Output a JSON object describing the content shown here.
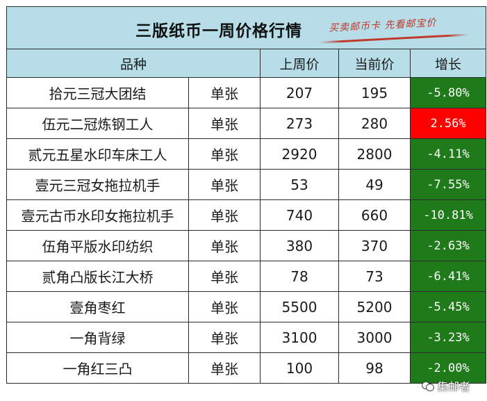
{
  "title": "三版纸币一周价格行情",
  "slogan": "买卖邮币卡  先看邮宝价",
  "headers": {
    "variety": "品种",
    "last_week": "上周价",
    "current": "当前价",
    "growth": "增长"
  },
  "rows": [
    {
      "name": "拾元三冠大团结",
      "unit": "单张",
      "last": "207",
      "current": "195",
      "growth": "-5.80%",
      "trend": "down"
    },
    {
      "name": "伍元二冠炼钢工人",
      "unit": "单张",
      "last": "273",
      "current": "280",
      "growth": "2.56%",
      "trend": "up"
    },
    {
      "name": "贰元五星水印车床工人",
      "unit": "单张",
      "last": "2920",
      "current": "2800",
      "growth": "-4.11%",
      "trend": "down"
    },
    {
      "name": "壹元三冠女拖拉机手",
      "unit": "单张",
      "last": "53",
      "current": "49",
      "growth": "-7.55%",
      "trend": "down"
    },
    {
      "name": "壹元古币水印女拖拉机手",
      "unit": "单张",
      "last": "740",
      "current": "660",
      "growth": "-10.81%",
      "trend": "down"
    },
    {
      "name": "伍角平版水印纺织",
      "unit": "单张",
      "last": "380",
      "current": "370",
      "growth": "-2.63%",
      "trend": "down"
    },
    {
      "name": "贰角凸版长江大桥",
      "unit": "单张",
      "last": "78",
      "current": "73",
      "growth": "-6.41%",
      "trend": "down"
    },
    {
      "name": "壹角枣红",
      "unit": "单张",
      "last": "5500",
      "current": "5200",
      "growth": "-5.45%",
      "trend": "down"
    },
    {
      "name": "一角背绿",
      "unit": "单张",
      "last": "3100",
      "current": "3000",
      "growth": "-3.23%",
      "trend": "down"
    },
    {
      "name": "一角红三凸",
      "unit": "单张",
      "last": "100",
      "current": "98",
      "growth": "-2.00%",
      "trend": "down"
    }
  ],
  "watermark": "集邮者",
  "colors": {
    "header_bg": "#b7dee8",
    "down_bg": "#1f7a1a",
    "up_bg": "#ff0000"
  }
}
